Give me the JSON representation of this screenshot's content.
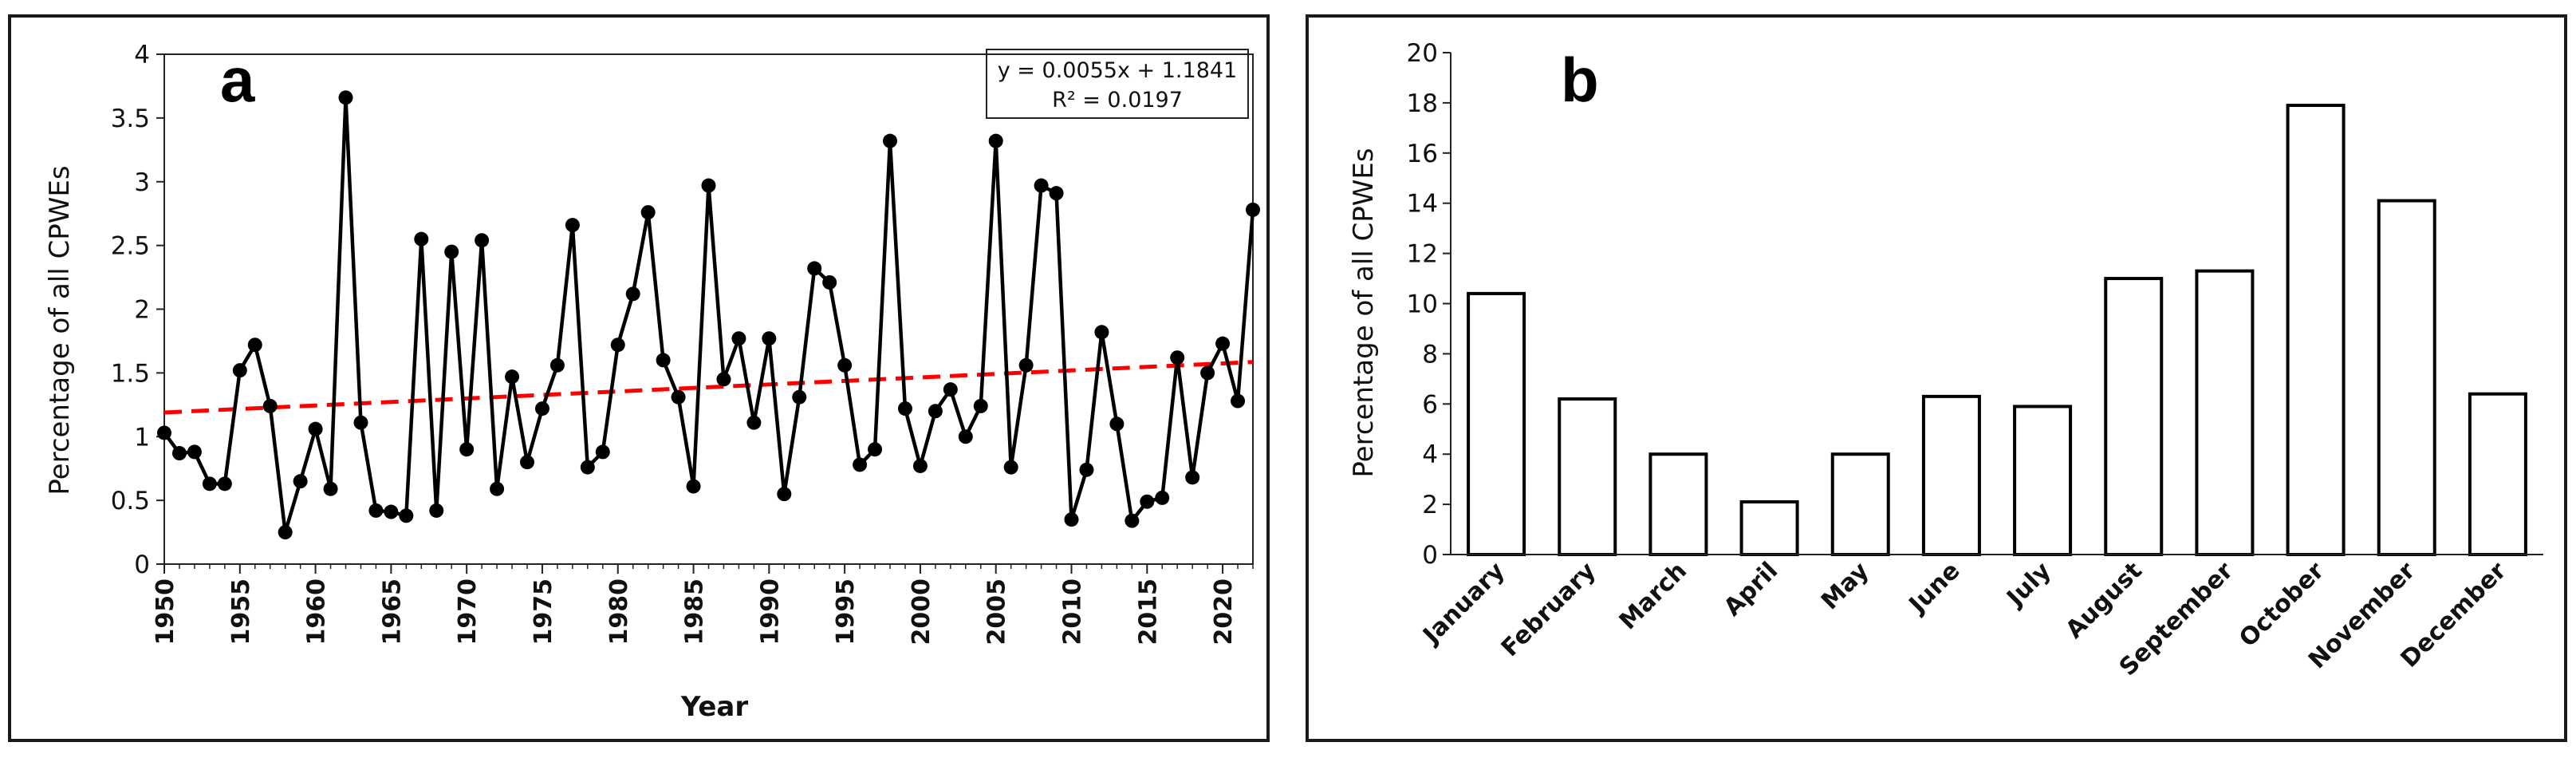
{
  "chart_data": [
    {
      "type": "line",
      "panel_label": "a",
      "xlabel": "Year",
      "ylabel": "Percentage of all CPWEs",
      "xlim": [
        1950,
        2022
      ],
      "ylim": [
        0,
        4
      ],
      "x_ticks": [
        "1950",
        "1955",
        "1960",
        "1965",
        "1970",
        "1975",
        "1980",
        "1985",
        "1990",
        "1995",
        "2000",
        "2005",
        "2010",
        "2015",
        "2020"
      ],
      "y_ticks": [
        "0",
        "0.5",
        "1",
        "1.5",
        "2",
        "2.5",
        "3",
        "3.5",
        "4"
      ],
      "x": [
        1950,
        1951,
        1952,
        1953,
        1954,
        1955,
        1956,
        1957,
        1958,
        1959,
        1960,
        1961,
        1962,
        1963,
        1964,
        1965,
        1966,
        1967,
        1968,
        1969,
        1970,
        1971,
        1972,
        1973,
        1974,
        1975,
        1976,
        1977,
        1978,
        1979,
        1980,
        1981,
        1982,
        1983,
        1984,
        1985,
        1986,
        1987,
        1988,
        1989,
        1990,
        1991,
        1992,
        1993,
        1994,
        1995,
        1996,
        1997,
        1998,
        1999,
        2000,
        2001,
        2002,
        2003,
        2004,
        2005,
        2006,
        2007,
        2008,
        2009,
        2010,
        2011,
        2012,
        2013,
        2014,
        2015,
        2016,
        2017,
        2018,
        2019,
        2020,
        2021,
        2022
      ],
      "y": [
        1.03,
        0.87,
        0.88,
        0.63,
        0.63,
        1.52,
        1.72,
        1.24,
        0.25,
        0.65,
        1.06,
        0.59,
        3.66,
        1.11,
        0.42,
        0.41,
        0.38,
        2.55,
        0.42,
        2.45,
        0.9,
        2.54,
        0.59,
        1.47,
        0.8,
        1.22,
        1.56,
        2.66,
        0.76,
        0.88,
        1.72,
        2.12,
        2.76,
        1.6,
        1.31,
        0.61,
        2.97,
        1.45,
        1.77,
        1.11,
        1.77,
        0.55,
        1.31,
        2.32,
        2.21,
        1.56,
        0.78,
        0.9,
        3.32,
        1.22,
        0.77,
        1.2,
        1.37,
        1.0,
        1.24,
        3.32,
        0.76,
        1.56,
        2.97,
        2.91,
        0.35,
        0.74,
        1.82,
        1.1,
        0.34,
        0.49,
        0.52,
        1.62,
        0.68,
        1.5,
        1.73,
        1.28,
        2.78
      ],
      "trendline": {
        "slope": 0.0055,
        "intercept": 1.1841,
        "x_index_start": 1,
        "color": "#ff0000",
        "equation": "y = 0.0055x + 1.1841",
        "r_squared": "R² = 0.0197"
      }
    },
    {
      "type": "bar",
      "panel_label": "b",
      "xlabel": "",
      "ylabel": "Percentage of all CPWEs",
      "ylim": [
        0,
        20
      ],
      "y_ticks": [
        "0",
        "2",
        "4",
        "6",
        "8",
        "10",
        "12",
        "14",
        "16",
        "18",
        "20"
      ],
      "categories": [
        "January",
        "February",
        "March",
        "April",
        "May",
        "June",
        "July",
        "August",
        "September",
        "October",
        "November",
        "December"
      ],
      "values": [
        10.4,
        6.2,
        4.0,
        2.1,
        4.0,
        6.3,
        5.9,
        11.0,
        11.3,
        17.9,
        14.1,
        6.4
      ]
    }
  ]
}
